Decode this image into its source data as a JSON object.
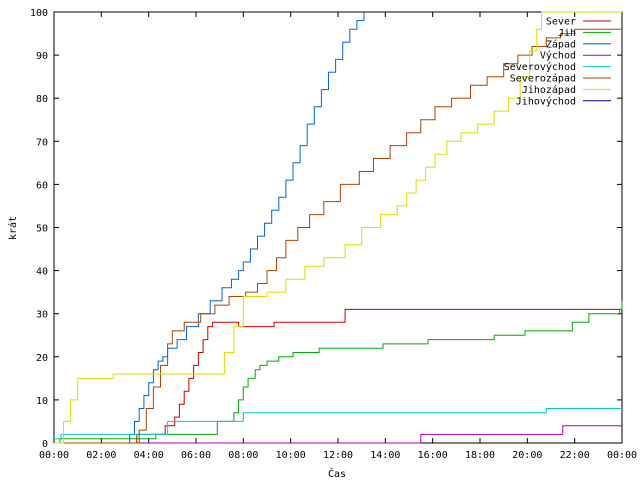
{
  "chart_data": {
    "type": "line",
    "xlabel": "Čas",
    "ylabel": "krát",
    "xlim": [
      0,
      24
    ],
    "ylim": [
      0,
      100
    ],
    "x_ticks": [
      {
        "value": 0,
        "label": "00:00"
      },
      {
        "value": 2,
        "label": "02:00"
      },
      {
        "value": 4,
        "label": "04:00"
      },
      {
        "value": 6,
        "label": "06:00"
      },
      {
        "value": 8,
        "label": "08:00"
      },
      {
        "value": 10,
        "label": "10:00"
      },
      {
        "value": 12,
        "label": "12:00"
      },
      {
        "value": 14,
        "label": "14:00"
      },
      {
        "value": 16,
        "label": "16:00"
      },
      {
        "value": 18,
        "label": "18:00"
      },
      {
        "value": 20,
        "label": "20:00"
      },
      {
        "value": 22,
        "label": "22:00"
      },
      {
        "value": 24,
        "label": "00:00"
      }
    ],
    "y_ticks": [
      {
        "value": 0,
        "label": "0"
      },
      {
        "value": 10,
        "label": "10"
      },
      {
        "value": 20,
        "label": "20"
      },
      {
        "value": 30,
        "label": "30"
      },
      {
        "value": 40,
        "label": "40"
      },
      {
        "value": 50,
        "label": "50"
      },
      {
        "value": 60,
        "label": "60"
      },
      {
        "value": 70,
        "label": "70"
      },
      {
        "value": 80,
        "label": "80"
      },
      {
        "value": 90,
        "label": "90"
      },
      {
        "value": 100,
        "label": "100"
      }
    ],
    "grid": false,
    "legend": "top-right",
    "series": [
      {
        "name": "Sever",
        "color": "#cc0000",
        "step": true,
        "x": [
          0,
          3.5,
          4.7,
          5.1,
          5.3,
          5.5,
          5.7,
          5.9,
          6.1,
          6.3,
          6.5,
          6.7,
          7.0,
          7.8,
          9.3,
          12.3,
          24
        ],
        "y": [
          0,
          2,
          4,
          6,
          9,
          12,
          15,
          18,
          21,
          24,
          27,
          28,
          28,
          27,
          28,
          31,
          31
        ]
      },
      {
        "name": "Jih",
        "color": "#00aa00",
        "step": true,
        "x": [
          0,
          0.25,
          4.3,
          6.9,
          7.6,
          7.8,
          8.0,
          8.2,
          8.5,
          8.7,
          9.0,
          9.5,
          10.1,
          11.2,
          13.9,
          15.8,
          18.6,
          19.9,
          21.9,
          22.6,
          23.9,
          24
        ],
        "y": [
          0,
          1,
          2,
          5,
          7,
          10,
          13,
          15,
          17,
          18,
          19,
          20,
          21,
          22,
          23,
          24,
          25,
          26,
          28,
          30,
          31,
          33
        ]
      },
      {
        "name": "Západ",
        "color": "#0066cc",
        "step": true,
        "x": [
          0,
          3.2,
          3.4,
          3.6,
          3.8,
          4.0,
          4.2,
          4.4,
          4.6,
          4.8,
          5.2,
          5.6,
          6.1,
          6.6,
          7.1,
          7.5,
          7.8,
          8.0,
          8.3,
          8.6,
          8.9,
          9.2,
          9.5,
          9.8,
          10.1,
          10.4,
          10.7,
          11.0,
          11.3,
          11.6,
          11.9,
          12.2,
          12.5,
          12.8,
          13.1
        ],
        "y": [
          0,
          2,
          5,
          8,
          11,
          14,
          17,
          19,
          20,
          22,
          24,
          27,
          30,
          33,
          36,
          38,
          40,
          42,
          45,
          48,
          51,
          54,
          57,
          61,
          65,
          69,
          74,
          78,
          82,
          86,
          89,
          93,
          96,
          98,
          100
        ]
      },
      {
        "name": "Východ",
        "color": "#aa00aa",
        "step": true,
        "x": [
          0,
          15.3,
          15.5,
          21.5,
          24
        ],
        "y": [
          0,
          0,
          2,
          4,
          4
        ]
      },
      {
        "name": "Severovýchod",
        "color": "#00cccc",
        "step": true,
        "x": [
          0,
          0.3,
          4.8,
          8.0,
          20.8,
          24
        ],
        "y": [
          1,
          2,
          5,
          7,
          8,
          8
        ]
      },
      {
        "name": "Severozápad",
        "color": "#aa4400",
        "step": true,
        "x": [
          0,
          3.6,
          3.9,
          4.2,
          4.5,
          4.8,
          5.0,
          5.5,
          6.2,
          6.8,
          7.4,
          8.1,
          8.6,
          9.0,
          9.4,
          9.8,
          10.3,
          10.8,
          11.4,
          12.1,
          12.9,
          13.5,
          14.2,
          14.9,
          15.5,
          16.1,
          16.8,
          17.6,
          18.3,
          19.0,
          19.6,
          20.2,
          20.8,
          21.4,
          22.0,
          24
        ],
        "y": [
          0,
          3,
          8,
          13,
          18,
          23,
          26,
          28,
          30,
          32,
          34,
          35,
          37,
          40,
          43,
          47,
          50,
          53,
          56,
          60,
          63,
          66,
          69,
          72,
          75,
          78,
          80,
          83,
          85,
          88,
          90,
          92,
          94,
          95,
          96,
          96
        ]
      },
      {
        "name": "Jihozápad",
        "color": "#dddd00",
        "step": true,
        "x": [
          0,
          0.4,
          0.7,
          1.0,
          2.5,
          3.5,
          5.5,
          6.8,
          7.2,
          7.6,
          8.0,
          9.0,
          9.8,
          10.6,
          11.4,
          12.3,
          13.0,
          13.8,
          14.5,
          14.9,
          15.3,
          15.7,
          16.1,
          16.6,
          17.2,
          17.9,
          18.6,
          19.2,
          19.7,
          20.1,
          20.4,
          20.6,
          24
        ],
        "y": [
          0,
          5,
          10,
          15,
          16,
          16,
          16,
          16,
          21,
          27,
          34,
          35,
          38,
          41,
          43,
          46,
          50,
          53,
          55,
          58,
          61,
          64,
          67,
          70,
          72,
          74,
          77,
          80,
          85,
          91,
          96,
          100,
          100
        ]
      },
      {
        "name": "Jihovýchod",
        "color": "#000099",
        "step": true,
        "x": [],
        "y": []
      }
    ]
  }
}
